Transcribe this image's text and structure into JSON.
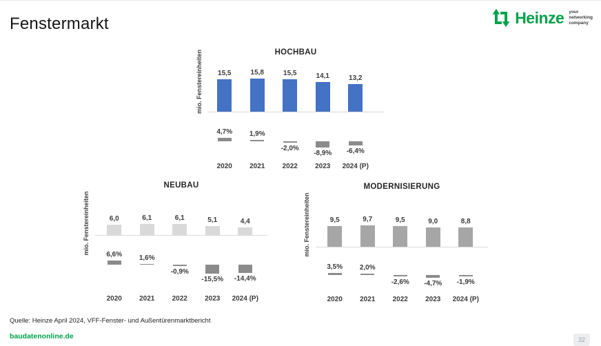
{
  "page": {
    "title": "Fenstermarkt",
    "source": "Quelle: Heinze April 2024, VFF-Fenster- und Außentürenmarktbericht",
    "website": "baudatenonline.de",
    "page_number": "32"
  },
  "logo": {
    "name": "Heinze",
    "tagline_lines": [
      "your",
      "networking",
      "company"
    ],
    "color": "#00A24B"
  },
  "colors": {
    "hochbau_bar": "#4472C4",
    "neubau_bar": "#D9D9D9",
    "modernisierung_bar": "#A6A6A6",
    "change_bar": "#8B8B8B",
    "baseline": "#D9D9D9"
  },
  "chart_data": [
    {
      "type": "bar",
      "title": "HOCHBAU",
      "ylabel": "mio. Fenstereinheiten",
      "categories": [
        "2020",
        "2021",
        "2022",
        "2023",
        "2024 (P)"
      ],
      "series": [
        {
          "name": "mio. Fenstereinheiten",
          "values": [
            15.5,
            15.8,
            15.5,
            14.1,
            13.2
          ],
          "labels": [
            "15,5",
            "15,8",
            "15,5",
            "14,1",
            "13,2"
          ]
        },
        {
          "name": "Veränderung in %",
          "values": [
            4.7,
            1.9,
            -2.0,
            -8.9,
            -6.4
          ],
          "labels": [
            "4,7%",
            "1,9%",
            "-2,0%",
            "-8,9%",
            "-6,4%"
          ]
        }
      ],
      "bar_color": "#4472C4",
      "legend": false,
      "grid": false
    },
    {
      "type": "bar",
      "title": "NEUBAU",
      "ylabel": "mio. Fenstereinheiten",
      "categories": [
        "2020",
        "2021",
        "2022",
        "2023",
        "2024 (P)"
      ],
      "series": [
        {
          "name": "mio. Fenstereinheiten",
          "values": [
            6.0,
            6.1,
            6.1,
            5.1,
            4.4
          ],
          "labels": [
            "6,0",
            "6,1",
            "6,1",
            "5,1",
            "4,4"
          ]
        },
        {
          "name": "Veränderung in %",
          "values": [
            6.6,
            1.6,
            -0.9,
            -15.5,
            -14.4
          ],
          "labels": [
            "6,6%",
            "1,6%",
            "-0,9%",
            "-15,5%",
            "-14,4%"
          ]
        }
      ],
      "bar_color": "#D9D9D9",
      "legend": false,
      "grid": false
    },
    {
      "type": "bar",
      "title": "MODERNISIERUNG",
      "ylabel": "mio. Fenstereinheiten",
      "categories": [
        "2020",
        "2021",
        "2022",
        "2023",
        "2024 (P)"
      ],
      "series": [
        {
          "name": "mio. Fenstereinheiten",
          "values": [
            9.5,
            9.7,
            9.5,
            9.0,
            8.8
          ],
          "labels": [
            "9,5",
            "9,7",
            "9,5",
            "9,0",
            "8,8"
          ]
        },
        {
          "name": "Veränderung in %",
          "values": [
            3.5,
            2.0,
            -2.6,
            -4.7,
            -1.9
          ],
          "labels": [
            "3,5%",
            "2,0%",
            "-2,6%",
            "-4,7%",
            "-1,9%"
          ]
        }
      ],
      "bar_color": "#A6A6A6",
      "legend": false,
      "grid": false
    }
  ]
}
